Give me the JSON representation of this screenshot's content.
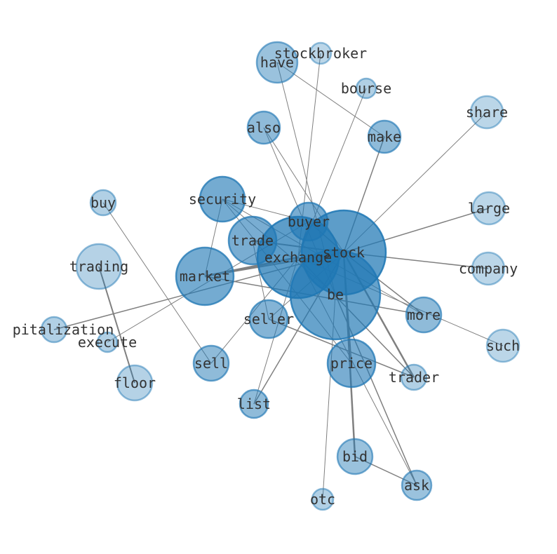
{
  "nodes": [
    {
      "id": "stock",
      "label": "stock"
    },
    {
      "id": "exchange",
      "label": "exchange"
    },
    {
      "id": "be",
      "label": "be"
    },
    {
      "id": "buyer",
      "label": "buyer"
    },
    {
      "id": "trade",
      "label": "trade"
    },
    {
      "id": "security",
      "label": "security"
    },
    {
      "id": "market",
      "label": "market"
    },
    {
      "id": "seller",
      "label": "seller"
    },
    {
      "id": "more",
      "label": "more"
    },
    {
      "id": "price",
      "label": "price"
    },
    {
      "id": "trader",
      "label": "trader"
    },
    {
      "id": "bid",
      "label": "bid"
    },
    {
      "id": "ask",
      "label": "ask"
    },
    {
      "id": "otc",
      "label": "otc"
    },
    {
      "id": "list",
      "label": "list"
    },
    {
      "id": "sell",
      "label": "sell"
    },
    {
      "id": "floor",
      "label": "floor"
    },
    {
      "id": "execute",
      "label": "execute"
    },
    {
      "id": "capitalization",
      "label": "pitalization"
    },
    {
      "id": "trading",
      "label": "trading"
    },
    {
      "id": "buy",
      "label": "buy"
    },
    {
      "id": "also",
      "label": "also"
    },
    {
      "id": "have",
      "label": "have"
    },
    {
      "id": "stockbroker",
      "label": "stockbroker"
    },
    {
      "id": "bourse",
      "label": "bourse"
    },
    {
      "id": "make",
      "label": "make"
    },
    {
      "id": "share",
      "label": "share"
    },
    {
      "id": "large",
      "label": "large"
    },
    {
      "id": "company",
      "label": "company"
    },
    {
      "id": "such",
      "label": "such"
    }
  ],
  "edges": [
    [
      "trading",
      "floor",
      2
    ],
    [
      "buy",
      "sell",
      1
    ],
    [
      "capitalization",
      "stock",
      1.5
    ],
    [
      "execute",
      "buyer",
      1
    ],
    [
      "sell",
      "exchange",
      1
    ],
    [
      "list",
      "buyer",
      1
    ],
    [
      "list",
      "stock",
      1.5
    ],
    [
      "otc",
      "be",
      1
    ],
    [
      "bid",
      "ask",
      1.5
    ],
    [
      "bid",
      "stock",
      2.5
    ],
    [
      "ask",
      "be",
      1.5
    ],
    [
      "ask",
      "exchange",
      1
    ],
    [
      "price",
      "stock",
      1.5
    ],
    [
      "seller",
      "trader",
      1.5
    ],
    [
      "trader",
      "stock",
      2.5
    ],
    [
      "trader",
      "exchange",
      1.5
    ],
    [
      "more",
      "market",
      1.5
    ],
    [
      "more",
      "stock",
      1.5
    ],
    [
      "more",
      "security",
      1
    ],
    [
      "such",
      "exchange",
      1
    ],
    [
      "company",
      "stock",
      1.5
    ],
    [
      "large",
      "stock",
      1.5
    ],
    [
      "share",
      "stock",
      1
    ],
    [
      "make",
      "stock",
      1.5
    ],
    [
      "make",
      "have",
      1
    ],
    [
      "bourse",
      "exchange",
      1
    ],
    [
      "stockbroker",
      "exchange",
      1
    ],
    [
      "have",
      "be",
      1
    ],
    [
      "also",
      "stock",
      1
    ],
    [
      "also",
      "be",
      1
    ],
    [
      "security",
      "buyer",
      1
    ],
    [
      "security",
      "market",
      1
    ],
    [
      "security",
      "be",
      1
    ],
    [
      "security",
      "price",
      1
    ],
    [
      "trade",
      "stock",
      2
    ],
    [
      "market",
      "stock",
      2
    ],
    [
      "market",
      "exchange",
      3
    ],
    [
      "buyer",
      "stock",
      1.5
    ],
    [
      "seller",
      "stock",
      1
    ],
    [
      "trade",
      "seller",
      1
    ]
  ],
  "colors": {
    "node": "#1f77b4",
    "edge": "#808080"
  }
}
